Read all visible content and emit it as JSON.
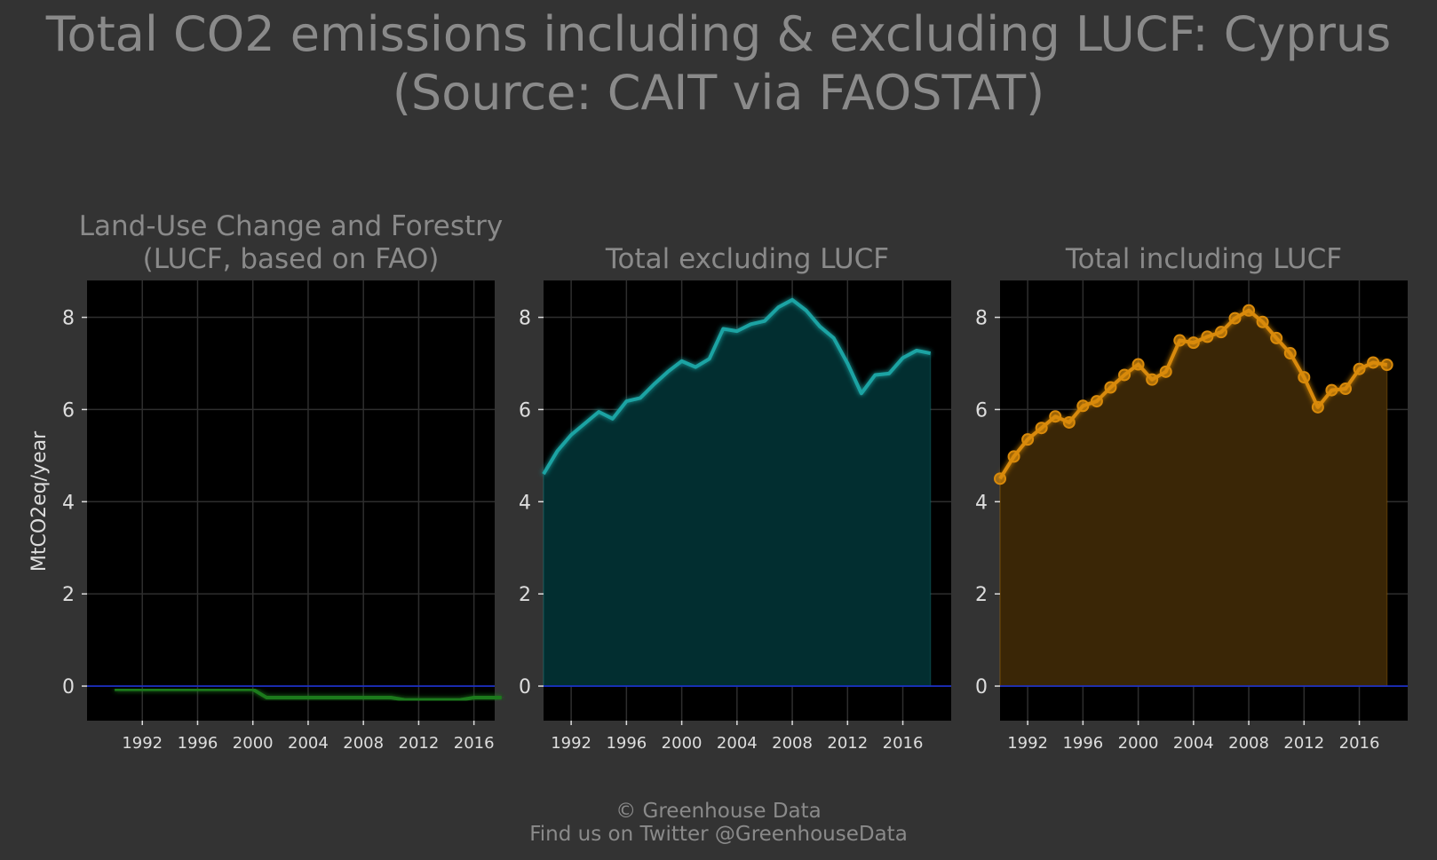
{
  "title_line1": "Total CO2 emissions including & excluding LUCF: Cyprus",
  "title_line2": "(Source: CAIT via FAOSTAT)",
  "footer_line1": "© Greenhouse Data",
  "footer_line2": "Find us on Twitter @GreenhouseData",
  "ylabel": "MtCO2eq/year",
  "chart_data": [
    {
      "type": "area",
      "title_lines": [
        "Land-Use Change and Forestry",
        "(LUCF, based on FAO)"
      ],
      "color": "#1a7a1a",
      "x": [
        1990,
        1991,
        1992,
        1993,
        1994,
        1995,
        1996,
        1997,
        1998,
        1999,
        2000,
        2001,
        2002,
        2003,
        2004,
        2005,
        2006,
        2007,
        2008,
        2009,
        2010,
        2011,
        2012,
        2013,
        2014,
        2015,
        2016,
        2017,
        2018
      ],
      "values": [
        -0.07,
        -0.07,
        -0.07,
        -0.07,
        -0.07,
        -0.07,
        -0.07,
        -0.07,
        -0.07,
        -0.07,
        -0.07,
        -0.25,
        -0.25,
        -0.25,
        -0.25,
        -0.25,
        -0.25,
        -0.25,
        -0.25,
        -0.25,
        -0.25,
        -0.3,
        -0.3,
        -0.3,
        -0.3,
        -0.3,
        -0.25,
        -0.25,
        -0.25
      ],
      "xlim": [
        1988,
        2017.5
      ],
      "ylim": [
        -0.75,
        8.8
      ],
      "yticks": [
        0,
        2,
        4,
        6,
        8
      ],
      "xticks": [
        1992,
        1996,
        2000,
        2004,
        2008,
        2012,
        2016
      ],
      "markers": false
    },
    {
      "type": "area",
      "title_lines": [
        "Total excluding LUCF"
      ],
      "color": "#1aa3a3",
      "fill": "#022e30",
      "x": [
        1990,
        1991,
        1992,
        1993,
        1994,
        1995,
        1996,
        1997,
        1998,
        1999,
        2000,
        2001,
        2002,
        2003,
        2004,
        2005,
        2006,
        2007,
        2008,
        2009,
        2010,
        2011,
        2012,
        2013,
        2014,
        2015,
        2016,
        2017,
        2018
      ],
      "values": [
        4.6,
        5.1,
        5.45,
        5.7,
        5.95,
        5.8,
        6.18,
        6.25,
        6.55,
        6.82,
        7.05,
        6.92,
        7.1,
        7.75,
        7.7,
        7.85,
        7.92,
        8.22,
        8.38,
        8.15,
        7.8,
        7.55,
        7.0,
        6.35,
        6.75,
        6.78,
        7.12,
        7.28,
        7.22
      ],
      "xlim": [
        1990,
        2019.5
      ],
      "ylim": [
        -0.75,
        8.8
      ],
      "yticks": [
        0,
        2,
        4,
        6,
        8
      ],
      "xticks": [
        1992,
        1996,
        2000,
        2004,
        2008,
        2012,
        2016
      ],
      "markers": false
    },
    {
      "type": "area",
      "title_lines": [
        "Total including LUCF"
      ],
      "color": "#d98a0a",
      "fill": "#3a2606",
      "x": [
        1990,
        1991,
        1992,
        1993,
        1994,
        1995,
        1996,
        1997,
        1998,
        1999,
        2000,
        2001,
        2002,
        2003,
        2004,
        2005,
        2006,
        2007,
        2008,
        2009,
        2010,
        2011,
        2012,
        2013,
        2014,
        2015,
        2016,
        2017,
        2018
      ],
      "values": [
        4.5,
        4.98,
        5.35,
        5.6,
        5.85,
        5.72,
        6.08,
        6.18,
        6.48,
        6.75,
        6.98,
        6.65,
        6.82,
        7.5,
        7.45,
        7.58,
        7.68,
        7.98,
        8.15,
        7.9,
        7.55,
        7.22,
        6.7,
        6.05,
        6.42,
        6.45,
        6.88,
        7.02,
        6.97
      ],
      "xlim": [
        1990,
        2019.5
      ],
      "ylim": [
        -0.75,
        8.8
      ],
      "yticks": [
        0,
        2,
        4,
        6,
        8
      ],
      "xticks": [
        1992,
        1996,
        2000,
        2004,
        2008,
        2012,
        2016
      ],
      "markers": true
    }
  ]
}
